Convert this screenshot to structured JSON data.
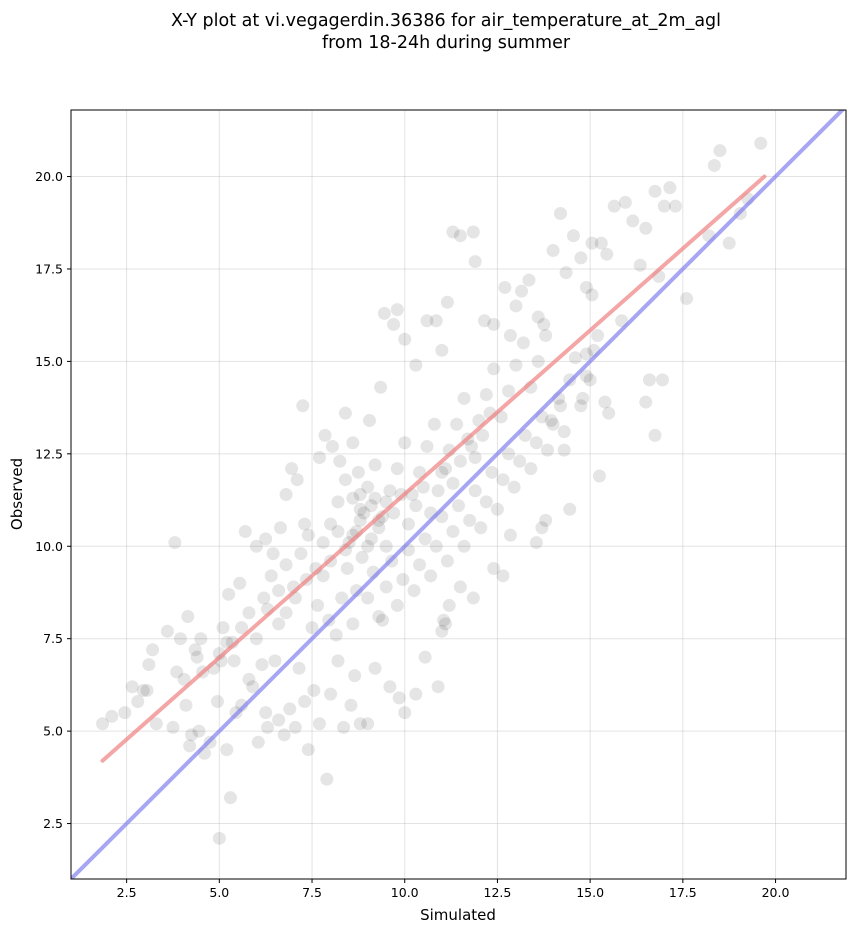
{
  "chart_data": {
    "type": "scatter",
    "title_line1": "X-Y plot at vi.vegagerdin.36386 for air_temperature_at_2m_agl",
    "title_line2": "from 18-24h during summer",
    "xlabel": "Simulated",
    "ylabel": "Observed",
    "xlim": [
      1.0,
      21.9
    ],
    "ylim": [
      1.0,
      21.8
    ],
    "xticks": [
      2.5,
      5.0,
      7.5,
      10.0,
      12.5,
      15.0,
      17.5,
      20.0
    ],
    "yticks": [
      2.5,
      5.0,
      7.5,
      10.0,
      12.5,
      15.0,
      17.5,
      20.0
    ],
    "xtick_labels": [
      "2.5",
      "5.0",
      "7.5",
      "10.0",
      "12.5",
      "15.0",
      "17.5",
      "20.0"
    ],
    "ytick_labels": [
      "2.5",
      "5.0",
      "7.5",
      "10.0",
      "12.5",
      "15.0",
      "17.5",
      "20.0"
    ],
    "grid": true,
    "point_color": "#000000",
    "point_opacity": 0.1,
    "series": [
      {
        "values": [
          [
            1.85,
            5.2
          ],
          [
            2.1,
            5.4
          ],
          [
            2.45,
            5.5
          ],
          [
            2.65,
            6.2
          ],
          [
            2.8,
            5.8
          ],
          [
            2.95,
            6.1
          ],
          [
            3.1,
            6.8
          ],
          [
            3.2,
            7.2
          ],
          [
            3.05,
            6.1
          ],
          [
            3.3,
            5.2
          ],
          [
            3.6,
            7.7
          ],
          [
            3.75,
            5.1
          ],
          [
            3.85,
            6.6
          ],
          [
            3.95,
            7.5
          ],
          [
            4.1,
            5.7
          ],
          [
            4.15,
            8.1
          ],
          [
            4.2,
            4.6
          ],
          [
            4.35,
            7.2
          ],
          [
            4.5,
            7.5
          ],
          [
            4.55,
            6.6
          ],
          [
            4.45,
            5.0
          ],
          [
            4.6,
            4.4
          ],
          [
            4.75,
            4.7
          ],
          [
            4.85,
            6.7
          ],
          [
            4.95,
            5.8
          ],
          [
            5.0,
            2.1
          ],
          [
            5.1,
            7.8
          ],
          [
            5.2,
            4.5
          ],
          [
            5.3,
            3.2
          ],
          [
            5.45,
            5.5
          ],
          [
            5.25,
            8.7
          ],
          [
            5.55,
            9.0
          ],
          [
            5.7,
            10.4
          ],
          [
            5.8,
            6.4
          ],
          [
            3.8,
            10.1
          ],
          [
            4.25,
            4.9
          ],
          [
            4.05,
            6.4
          ],
          [
            4.4,
            7.0
          ],
          [
            5.05,
            6.9
          ],
          [
            5.35,
            7.4
          ],
          [
            5.6,
            5.7
          ],
          [
            5.9,
            6.2
          ],
          [
            6.05,
            4.7
          ],
          [
            6.15,
            6.8
          ],
          [
            6.25,
            5.5
          ],
          [
            6.3,
            5.1
          ],
          [
            6.5,
            6.9
          ],
          [
            6.6,
            5.3
          ],
          [
            6.75,
            4.9
          ],
          [
            6.9,
            5.6
          ],
          [
            7.05,
            5.1
          ],
          [
            7.15,
            6.7
          ],
          [
            7.25,
            13.8
          ],
          [
            7.3,
            5.8
          ],
          [
            7.4,
            4.5
          ],
          [
            7.55,
            6.1
          ],
          [
            7.7,
            5.2
          ],
          [
            7.9,
            3.7
          ],
          [
            8.0,
            6.0
          ],
          [
            8.2,
            6.9
          ],
          [
            8.35,
            5.1
          ],
          [
            8.55,
            5.7
          ],
          [
            8.65,
            6.5
          ],
          [
            8.8,
            5.2
          ],
          [
            9.0,
            5.2
          ],
          [
            9.2,
            6.7
          ],
          [
            9.4,
            8.0
          ],
          [
            9.6,
            6.2
          ],
          [
            9.85,
            5.9
          ],
          [
            10.0,
            5.5
          ],
          [
            10.3,
            6.0
          ],
          [
            10.55,
            7.0
          ],
          [
            10.9,
            6.2
          ],
          [
            11.05,
            8.0
          ],
          [
            7.7,
            12.4
          ],
          [
            7.85,
            13.0
          ],
          [
            8.05,
            12.7
          ],
          [
            8.25,
            12.3
          ],
          [
            8.4,
            13.6
          ],
          [
            8.6,
            12.8
          ],
          [
            8.75,
            12.0
          ],
          [
            9.05,
            13.4
          ],
          [
            9.35,
            14.3
          ],
          [
            9.45,
            16.3
          ],
          [
            9.7,
            16.0
          ],
          [
            9.8,
            16.4
          ],
          [
            10.0,
            15.6
          ],
          [
            10.3,
            14.9
          ],
          [
            10.6,
            16.1
          ],
          [
            10.85,
            16.1
          ],
          [
            11.0,
            15.3
          ],
          [
            11.15,
            16.6
          ],
          [
            11.3,
            18.5
          ],
          [
            11.5,
            18.4
          ],
          [
            11.85,
            18.5
          ],
          [
            11.9,
            17.7
          ],
          [
            12.15,
            16.1
          ],
          [
            12.4,
            16.0
          ],
          [
            12.7,
            17.0
          ],
          [
            12.85,
            15.7
          ],
          [
            13.0,
            16.5
          ],
          [
            13.15,
            16.9
          ],
          [
            13.35,
            17.2
          ],
          [
            13.6,
            16.2
          ],
          [
            13.75,
            16.0
          ],
          [
            14.0,
            18.0
          ],
          [
            14.2,
            19.0
          ],
          [
            14.35,
            17.4
          ],
          [
            14.55,
            18.4
          ],
          [
            14.75,
            17.8
          ],
          [
            14.9,
            17.0
          ],
          [
            15.05,
            18.2
          ],
          [
            15.3,
            18.2
          ],
          [
            15.45,
            17.9
          ],
          [
            15.65,
            19.2
          ],
          [
            15.95,
            19.3
          ],
          [
            16.15,
            18.8
          ],
          [
            16.35,
            17.6
          ],
          [
            16.5,
            18.6
          ],
          [
            16.75,
            19.6
          ],
          [
            16.85,
            17.3
          ],
          [
            17.0,
            19.2
          ],
          [
            17.15,
            19.7
          ],
          [
            17.3,
            19.2
          ],
          [
            17.6,
            16.7
          ],
          [
            18.2,
            18.4
          ],
          [
            18.35,
            20.3
          ],
          [
            18.5,
            20.7
          ],
          [
            18.75,
            18.2
          ],
          [
            19.05,
            19.0
          ],
          [
            19.25,
            19.4
          ],
          [
            19.6,
            20.9
          ],
          [
            15.25,
            11.9
          ],
          [
            15.5,
            13.6
          ],
          [
            15.4,
            13.9
          ],
          [
            16.5,
            13.9
          ],
          [
            16.6,
            14.5
          ],
          [
            16.75,
            13.0
          ],
          [
            16.95,
            14.5
          ],
          [
            14.45,
            11.0
          ],
          [
            14.3,
            12.6
          ],
          [
            13.8,
            10.7
          ],
          [
            13.55,
            10.1
          ],
          [
            13.7,
            10.5
          ],
          [
            12.85,
            10.3
          ],
          [
            12.4,
            9.4
          ],
          [
            12.65,
            9.2
          ],
          [
            11.85,
            8.6
          ],
          [
            11.5,
            8.9
          ],
          [
            11.0,
            7.7
          ],
          [
            11.1,
            7.9
          ],
          [
            11.2,
            8.4
          ],
          [
            15.85,
            16.1
          ],
          [
            15.0,
            14.5
          ],
          [
            14.8,
            14.0
          ],
          [
            15.05,
            16.8
          ],
          [
            14.9,
            15.2
          ],
          [
            15.2,
            15.7
          ],
          [
            14.2,
            13.8
          ],
          [
            13.95,
            13.4
          ],
          [
            6.0,
            10.0
          ],
          [
            6.25,
            10.2
          ],
          [
            6.45,
            9.8
          ],
          [
            6.65,
            10.5
          ],
          [
            6.8,
            11.4
          ],
          [
            6.95,
            12.1
          ],
          [
            7.1,
            11.8
          ],
          [
            7.3,
            10.6
          ],
          [
            6.3,
            8.3
          ],
          [
            6.6,
            8.8
          ],
          [
            6.8,
            8.2
          ],
          [
            7.05,
            8.6
          ],
          [
            7.35,
            9.1
          ],
          [
            7.5,
            7.8
          ],
          [
            7.65,
            8.4
          ],
          [
            7.8,
            9.2
          ],
          [
            7.95,
            8.0
          ],
          [
            8.15,
            7.6
          ],
          [
            8.3,
            8.6
          ],
          [
            8.45,
            9.4
          ],
          [
            8.6,
            7.9
          ],
          [
            8.7,
            8.8
          ],
          [
            8.85,
            9.7
          ],
          [
            9.0,
            8.6
          ],
          [
            9.15,
            9.3
          ],
          [
            9.3,
            8.1
          ],
          [
            9.5,
            8.9
          ],
          [
            9.65,
            9.6
          ],
          [
            9.8,
            8.4
          ],
          [
            9.95,
            9.1
          ],
          [
            10.1,
            9.9
          ],
          [
            10.25,
            8.8
          ],
          [
            10.4,
            9.5
          ],
          [
            10.55,
            10.2
          ],
          [
            10.7,
            9.2
          ],
          [
            10.85,
            10.0
          ],
          [
            11.0,
            10.8
          ],
          [
            11.15,
            9.6
          ],
          [
            11.3,
            10.4
          ],
          [
            11.45,
            11.1
          ],
          [
            11.6,
            10.0
          ],
          [
            11.75,
            10.7
          ],
          [
            11.9,
            11.5
          ],
          [
            12.05,
            10.5
          ],
          [
            12.2,
            11.2
          ],
          [
            12.35,
            12.0
          ],
          [
            12.5,
            11.0
          ],
          [
            12.65,
            11.8
          ],
          [
            12.8,
            12.5
          ],
          [
            12.95,
            11.6
          ],
          [
            13.1,
            12.3
          ],
          [
            13.25,
            13.0
          ],
          [
            13.4,
            12.1
          ],
          [
            13.55,
            12.8
          ],
          [
            13.7,
            13.5
          ],
          [
            13.85,
            12.6
          ],
          [
            14.0,
            13.3
          ],
          [
            14.15,
            14.0
          ],
          [
            14.3,
            13.1
          ],
          [
            14.45,
            14.5
          ],
          [
            14.6,
            15.1
          ],
          [
            14.75,
            13.8
          ],
          [
            14.9,
            14.6
          ],
          [
            15.1,
            15.3
          ],
          [
            8.0,
            10.6
          ],
          [
            8.2,
            11.2
          ],
          [
            8.4,
            11.8
          ],
          [
            8.6,
            10.3
          ],
          [
            8.8,
            11.0
          ],
          [
            9.0,
            11.6
          ],
          [
            9.2,
            12.2
          ],
          [
            9.4,
            10.8
          ],
          [
            9.6,
            11.5
          ],
          [
            9.8,
            12.1
          ],
          [
            10.0,
            12.8
          ],
          [
            10.2,
            11.4
          ],
          [
            10.4,
            12.0
          ],
          [
            10.6,
            12.7
          ],
          [
            10.8,
            13.3
          ],
          [
            11.0,
            12.0
          ],
          [
            11.2,
            12.6
          ],
          [
            11.4,
            13.3
          ],
          [
            11.6,
            14.0
          ],
          [
            11.8,
            12.7
          ],
          [
            12.0,
            13.4
          ],
          [
            12.2,
            14.1
          ],
          [
            12.4,
            14.8
          ],
          [
            12.6,
            13.5
          ],
          [
            12.8,
            14.2
          ],
          [
            13.0,
            14.9
          ],
          [
            13.2,
            15.5
          ],
          [
            13.4,
            14.3
          ],
          [
            13.6,
            15.0
          ],
          [
            13.8,
            15.7
          ],
          [
            8.5,
            10.1
          ],
          [
            8.7,
            10.4
          ],
          [
            8.9,
            10.9
          ],
          [
            9.1,
            10.2
          ],
          [
            9.3,
            10.7
          ],
          [
            9.5,
            11.2
          ],
          [
            9.1,
            11.1
          ],
          [
            9.3,
            10.5
          ],
          [
            9.5,
            10.0
          ],
          [
            9.7,
            10.9
          ],
          [
            9.9,
            11.4
          ],
          [
            10.1,
            10.6
          ],
          [
            10.3,
            11.1
          ],
          [
            10.5,
            11.6
          ],
          [
            10.7,
            10.9
          ],
          [
            10.9,
            11.5
          ],
          [
            11.1,
            12.1
          ],
          [
            11.3,
            11.7
          ],
          [
            11.5,
            12.3
          ],
          [
            11.7,
            12.9
          ],
          [
            11.9,
            12.4
          ],
          [
            12.1,
            13.0
          ],
          [
            12.3,
            13.6
          ],
          [
            9.0,
            10.0
          ],
          [
            9.2,
            11.3
          ],
          [
            8.8,
            11.4
          ],
          [
            5.0,
            7.1
          ],
          [
            5.2,
            7.4
          ],
          [
            5.4,
            6.9
          ],
          [
            5.6,
            7.8
          ],
          [
            5.8,
            8.2
          ],
          [
            6.0,
            7.5
          ],
          [
            6.2,
            8.6
          ],
          [
            6.4,
            9.2
          ],
          [
            6.6,
            7.9
          ],
          [
            6.8,
            9.5
          ],
          [
            7.0,
            8.9
          ],
          [
            7.2,
            9.8
          ],
          [
            7.4,
            10.3
          ],
          [
            7.6,
            9.4
          ],
          [
            7.8,
            10.1
          ],
          [
            8.0,
            9.6
          ],
          [
            8.2,
            10.4
          ],
          [
            8.4,
            9.9
          ],
          [
            8.6,
            11.3
          ],
          [
            8.8,
            10.7
          ]
        ]
      }
    ],
    "lines": [
      {
        "color": "#f08080",
        "opacity": 0.7,
        "points": [
          [
            1.85,
            4.2
          ],
          [
            19.7,
            20.0
          ]
        ]
      },
      {
        "color": "#8080f0",
        "opacity": 0.7,
        "points": [
          [
            1.0,
            1.0
          ],
          [
            21.9,
            21.9
          ]
        ]
      }
    ]
  }
}
